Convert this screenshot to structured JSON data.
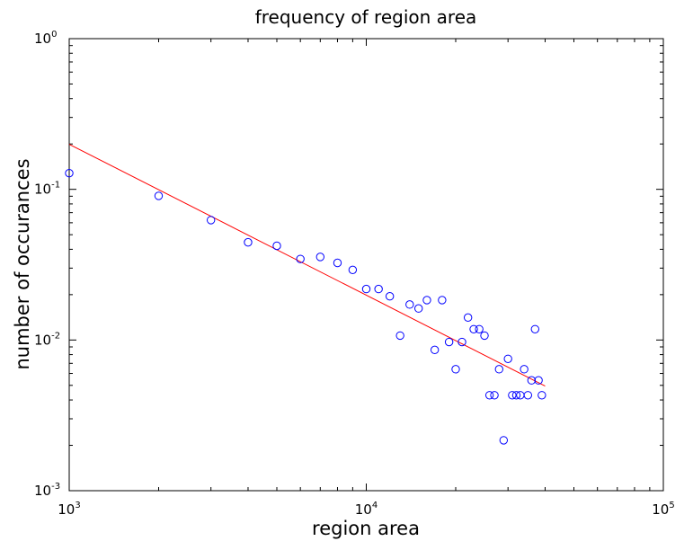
{
  "chart_data": {
    "type": "scatter",
    "title": "frequency of region area",
    "xlabel": "region area",
    "ylabel": "number of occurances",
    "xscale": "log",
    "yscale": "log",
    "xlim": [
      1000,
      100000
    ],
    "ylim": [
      0.001,
      1
    ],
    "grid": false,
    "legend": "none",
    "x_ticks": [
      {
        "base": "10",
        "exp": "3",
        "value": 1000
      },
      {
        "base": "10",
        "exp": "4",
        "value": 10000
      },
      {
        "base": "10",
        "exp": "5",
        "value": 100000
      }
    ],
    "y_ticks": [
      {
        "base": "10",
        "exp": "-3",
        "value": 0.001
      },
      {
        "base": "10",
        "exp": "-2",
        "value": 0.01
      },
      {
        "base": "10",
        "exp": "-1",
        "value": 0.1
      },
      {
        "base": "10",
        "exp": "0",
        "value": 1
      }
    ],
    "series": [
      {
        "marker": "open-circle",
        "color": "#0000ff",
        "points": [
          [
            1000,
            0.128
          ],
          [
            2000,
            0.0905
          ],
          [
            3000,
            0.0625
          ],
          [
            4000,
            0.0445
          ],
          [
            5000,
            0.0422
          ],
          [
            6000,
            0.0345
          ],
          [
            7000,
            0.0356
          ],
          [
            8000,
            0.0325
          ],
          [
            9000,
            0.0292
          ],
          [
            10000,
            0.0218
          ],
          [
            11000,
            0.0218
          ],
          [
            12000,
            0.0195
          ],
          [
            13000,
            0.0107
          ],
          [
            14000,
            0.0172
          ],
          [
            15000,
            0.0162
          ],
          [
            16000,
            0.0184
          ],
          [
            17000,
            0.0086
          ],
          [
            18000,
            0.0184
          ],
          [
            19000,
            0.0097
          ],
          [
            20000,
            0.0064
          ],
          [
            21000,
            0.0097
          ],
          [
            22000,
            0.0141
          ],
          [
            23000,
            0.0118
          ],
          [
            24000,
            0.0118
          ],
          [
            25000,
            0.0107
          ],
          [
            26000,
            0.0043
          ],
          [
            27000,
            0.0043
          ],
          [
            28000,
            0.0064
          ],
          [
            29000,
            0.00216
          ],
          [
            30000,
            0.0075
          ],
          [
            31000,
            0.0043
          ],
          [
            32000,
            0.0043
          ],
          [
            33000,
            0.0043
          ],
          [
            34000,
            0.0064
          ],
          [
            35000,
            0.0043
          ],
          [
            36000,
            0.0054
          ],
          [
            37000,
            0.0118
          ],
          [
            38000,
            0.0054
          ],
          [
            39000,
            0.0043
          ]
        ]
      }
    ],
    "fit_line": {
      "color": "#ff0000",
      "points": [
        [
          1000,
          0.199
        ],
        [
          40000,
          0.00495
        ]
      ]
    }
  }
}
